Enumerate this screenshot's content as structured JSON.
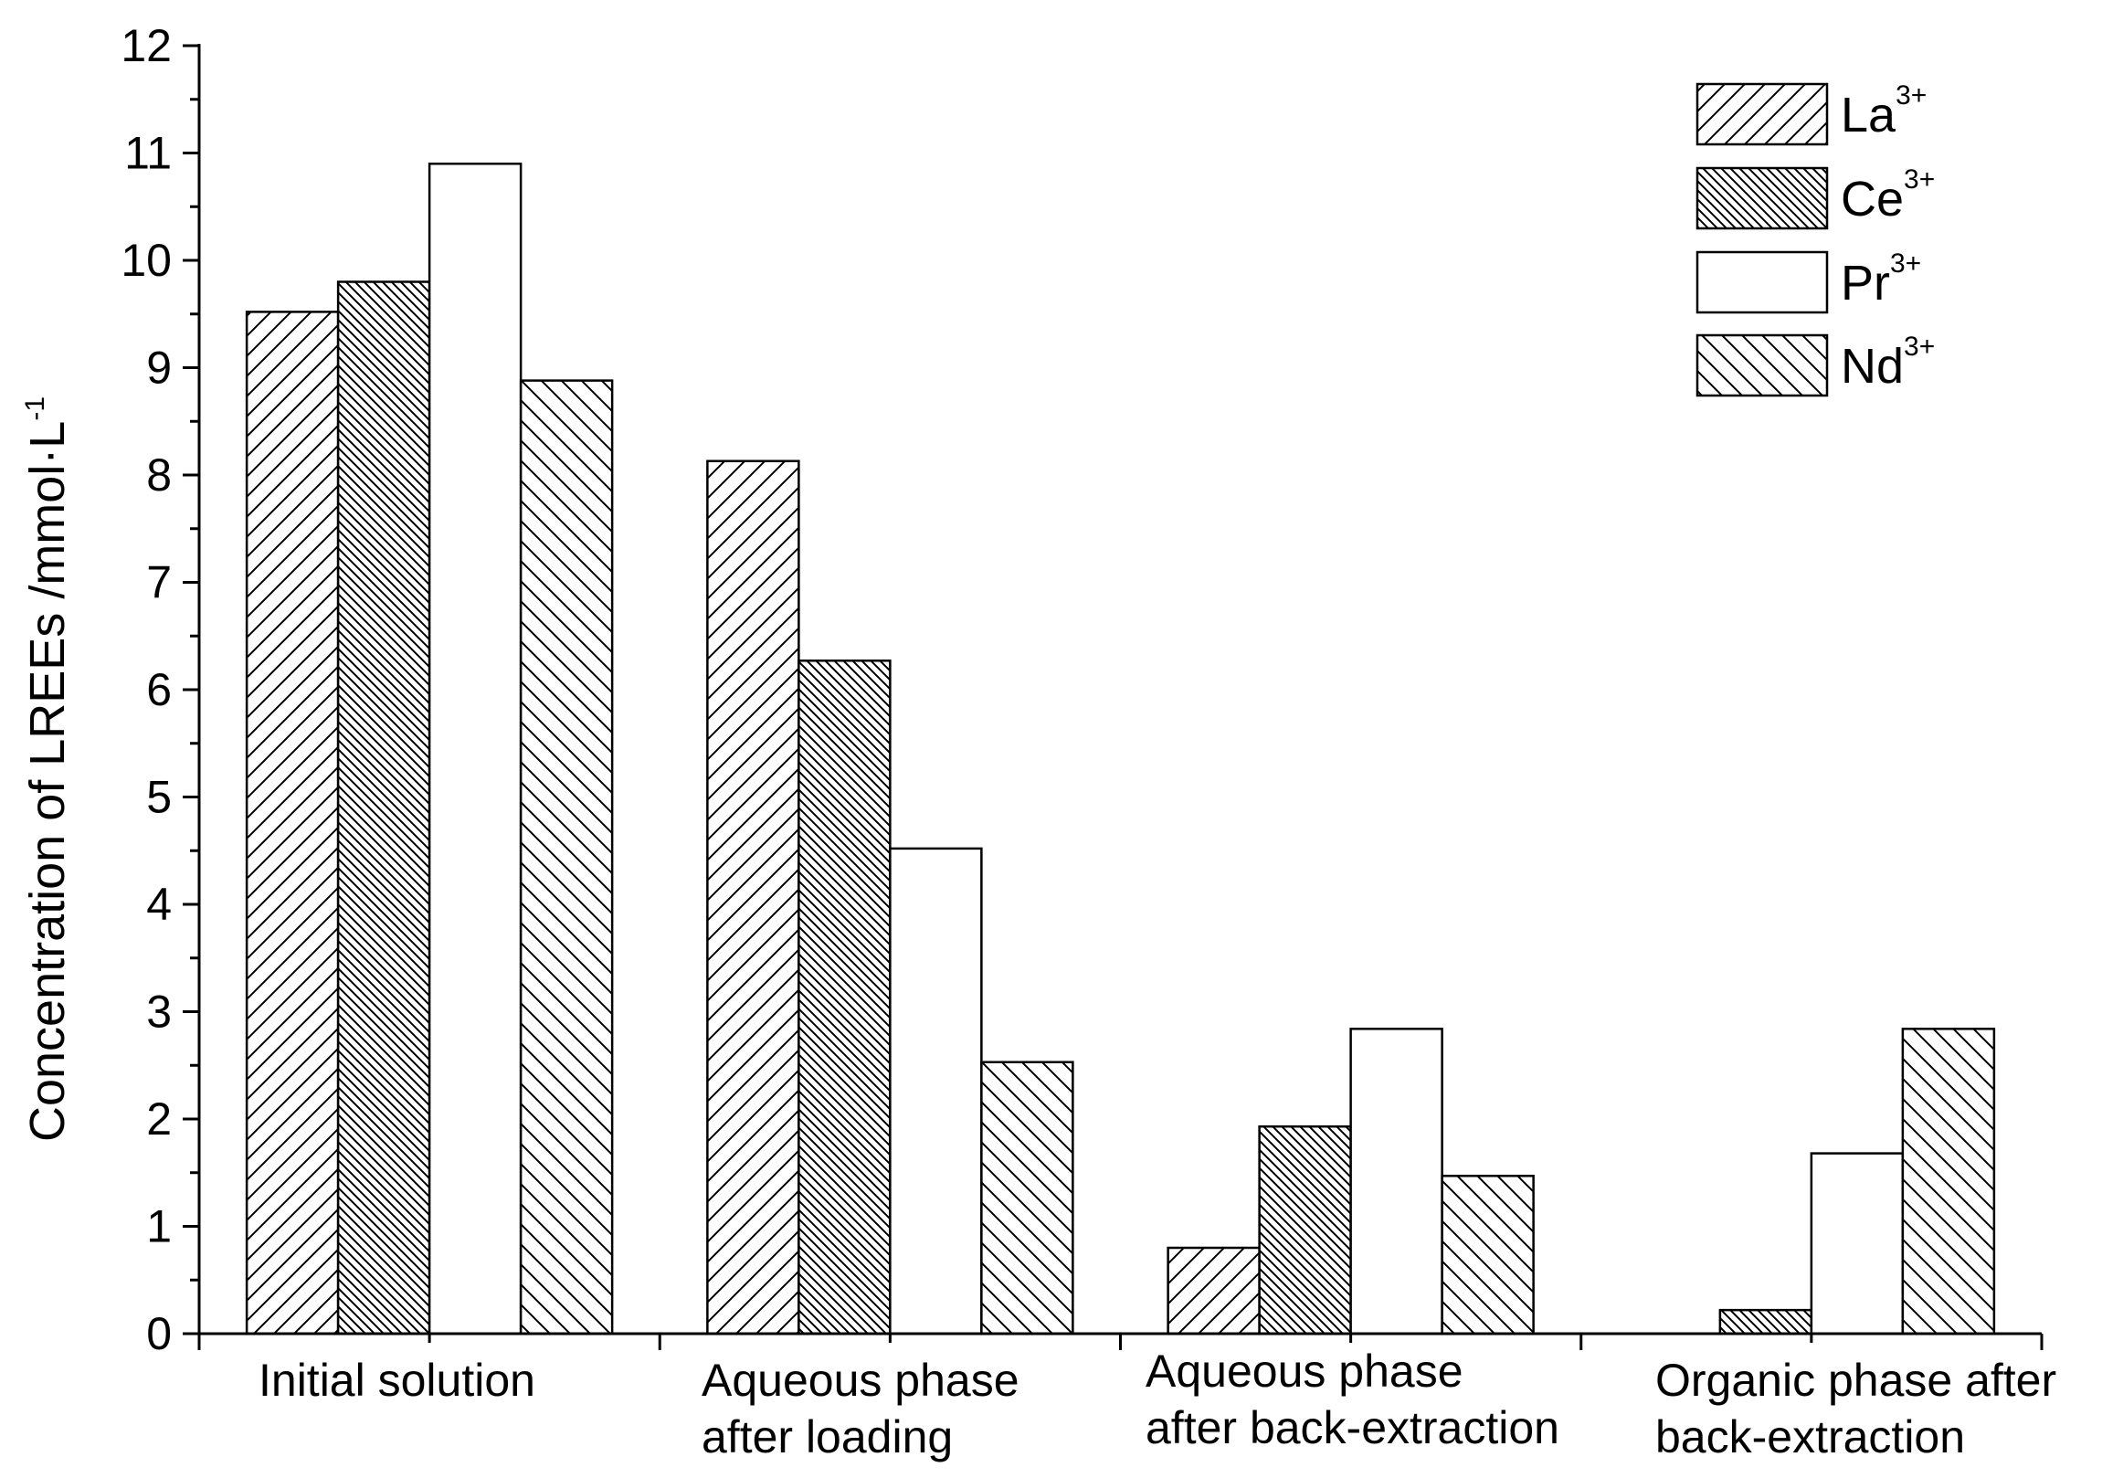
{
  "chart_data": {
    "type": "bar",
    "categories": [
      [
        "Initial solution"
      ],
      [
        "Aqueous phase",
        "after loading"
      ],
      [
        "Aqueous phase",
        "after back-extraction"
      ],
      [
        "Organic phase after",
        "back-extraction"
      ]
    ],
    "series": [
      {
        "name": "La",
        "superscript": "3+",
        "pattern": "diag-forward",
        "values": [
          9.52,
          8.13,
          0.8,
          0
        ]
      },
      {
        "name": "Ce",
        "superscript": "3+",
        "pattern": "diag-back-dense",
        "values": [
          9.8,
          6.27,
          1.93,
          0.22
        ]
      },
      {
        "name": "Pr",
        "superscript": "3+",
        "pattern": "none",
        "values": [
          10.9,
          4.52,
          2.84,
          1.68
        ]
      },
      {
        "name": "Nd",
        "superscript": "3+",
        "pattern": "diag-back",
        "values": [
          8.88,
          2.53,
          1.47,
          2.84
        ]
      }
    ],
    "ylabel": "Concentration of LREEs /mmol·L",
    "ylabel_superscript": "-1",
    "xlabel": "",
    "ylim": [
      0,
      12
    ],
    "yticks": [
      "0",
      "1",
      "2",
      "3",
      "4",
      "5",
      "6",
      "7",
      "8",
      "9",
      "10",
      "11",
      "12"
    ],
    "legend_position": "top-right",
    "grid": false
  }
}
